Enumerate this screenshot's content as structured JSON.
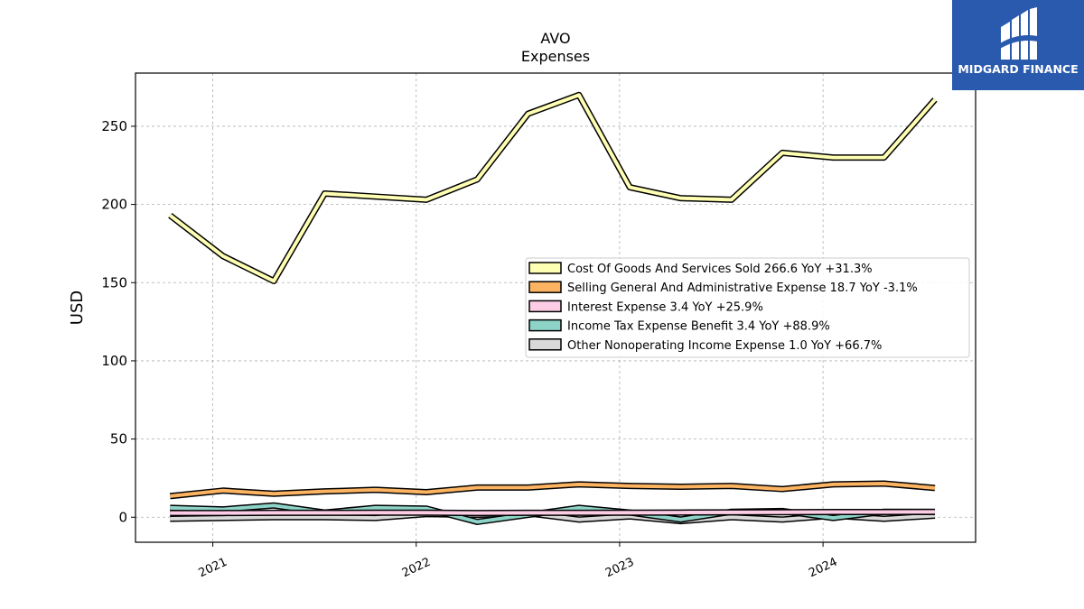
{
  "chart_data": {
    "type": "line",
    "title": "AVO",
    "subtitle": "Expenses",
    "ylabel": "USD",
    "xlabel": "",
    "ylim": [
      -16,
      284
    ],
    "xlim": [
      2020.62,
      2024.75
    ],
    "yticks": [
      0,
      50,
      100,
      150,
      200,
      250
    ],
    "xticks": [
      {
        "value": 2021.0,
        "label": "2021"
      },
      {
        "value": 2022.0,
        "label": "2022"
      },
      {
        "value": 2023.0,
        "label": "2023"
      },
      {
        "value": 2024.0,
        "label": "2024"
      }
    ],
    "grid": true,
    "legend_position": "right",
    "x": [
      2020.79,
      2021.05,
      2021.3,
      2021.55,
      2021.8,
      2022.05,
      2022.3,
      2022.55,
      2022.8,
      2023.05,
      2023.3,
      2023.55,
      2023.8,
      2024.05,
      2024.3,
      2024.55
    ],
    "series": [
      {
        "name": "Cost Of Goods And Services Sold",
        "latest": "266.6",
        "yoy": "+31.3%",
        "color": "#ffffb3",
        "values": [
          193,
          167,
          151,
          207,
          205,
          203,
          216,
          258,
          270,
          211,
          204,
          203,
          233,
          230,
          230,
          267
        ]
      },
      {
        "name": "Selling General And Administrative Expense",
        "latest": "18.7",
        "yoy": "-3.1%",
        "color": "#fdb462",
        "values": [
          13.5,
          17,
          15,
          16.5,
          17.5,
          16,
          19,
          19,
          21,
          20,
          19.5,
          20,
          18,
          21,
          21.5,
          18.7
        ]
      },
      {
        "name": "Interest Expense",
        "latest": "3.4",
        "yoy": "+25.9%",
        "color": "#fccde5",
        "values": [
          2.7,
          2.7,
          2.8,
          2.8,
          2.9,
          2.9,
          2.7,
          2.8,
          2.8,
          2.9,
          3.0,
          3.1,
          3.2,
          3.3,
          3.3,
          3.4
        ]
      },
      {
        "name": "Income Tax Expense Benefit",
        "latest": "3.4",
        "yoy": "+88.9%",
        "color": "#8dd3c7",
        "values": [
          6,
          5,
          7.5,
          3,
          6,
          5.5,
          -3,
          1.5,
          6,
          3,
          -1.5,
          3.5,
          4,
          -0.5,
          3.5,
          3.4
        ]
      },
      {
        "name": "Other Nonoperating Income Expense",
        "latest": "1.0",
        "yoy": "+66.7%",
        "color": "#d9d9d9",
        "values": [
          -1,
          -0.5,
          0,
          0,
          -0.5,
          2,
          1.5,
          2.5,
          -1.5,
          0.5,
          -2.5,
          0,
          -1.5,
          1,
          -1,
          1.0
        ]
      }
    ]
  },
  "logo": {
    "text": "MIDGARD FINANCE",
    "color": "#2a5aad"
  }
}
